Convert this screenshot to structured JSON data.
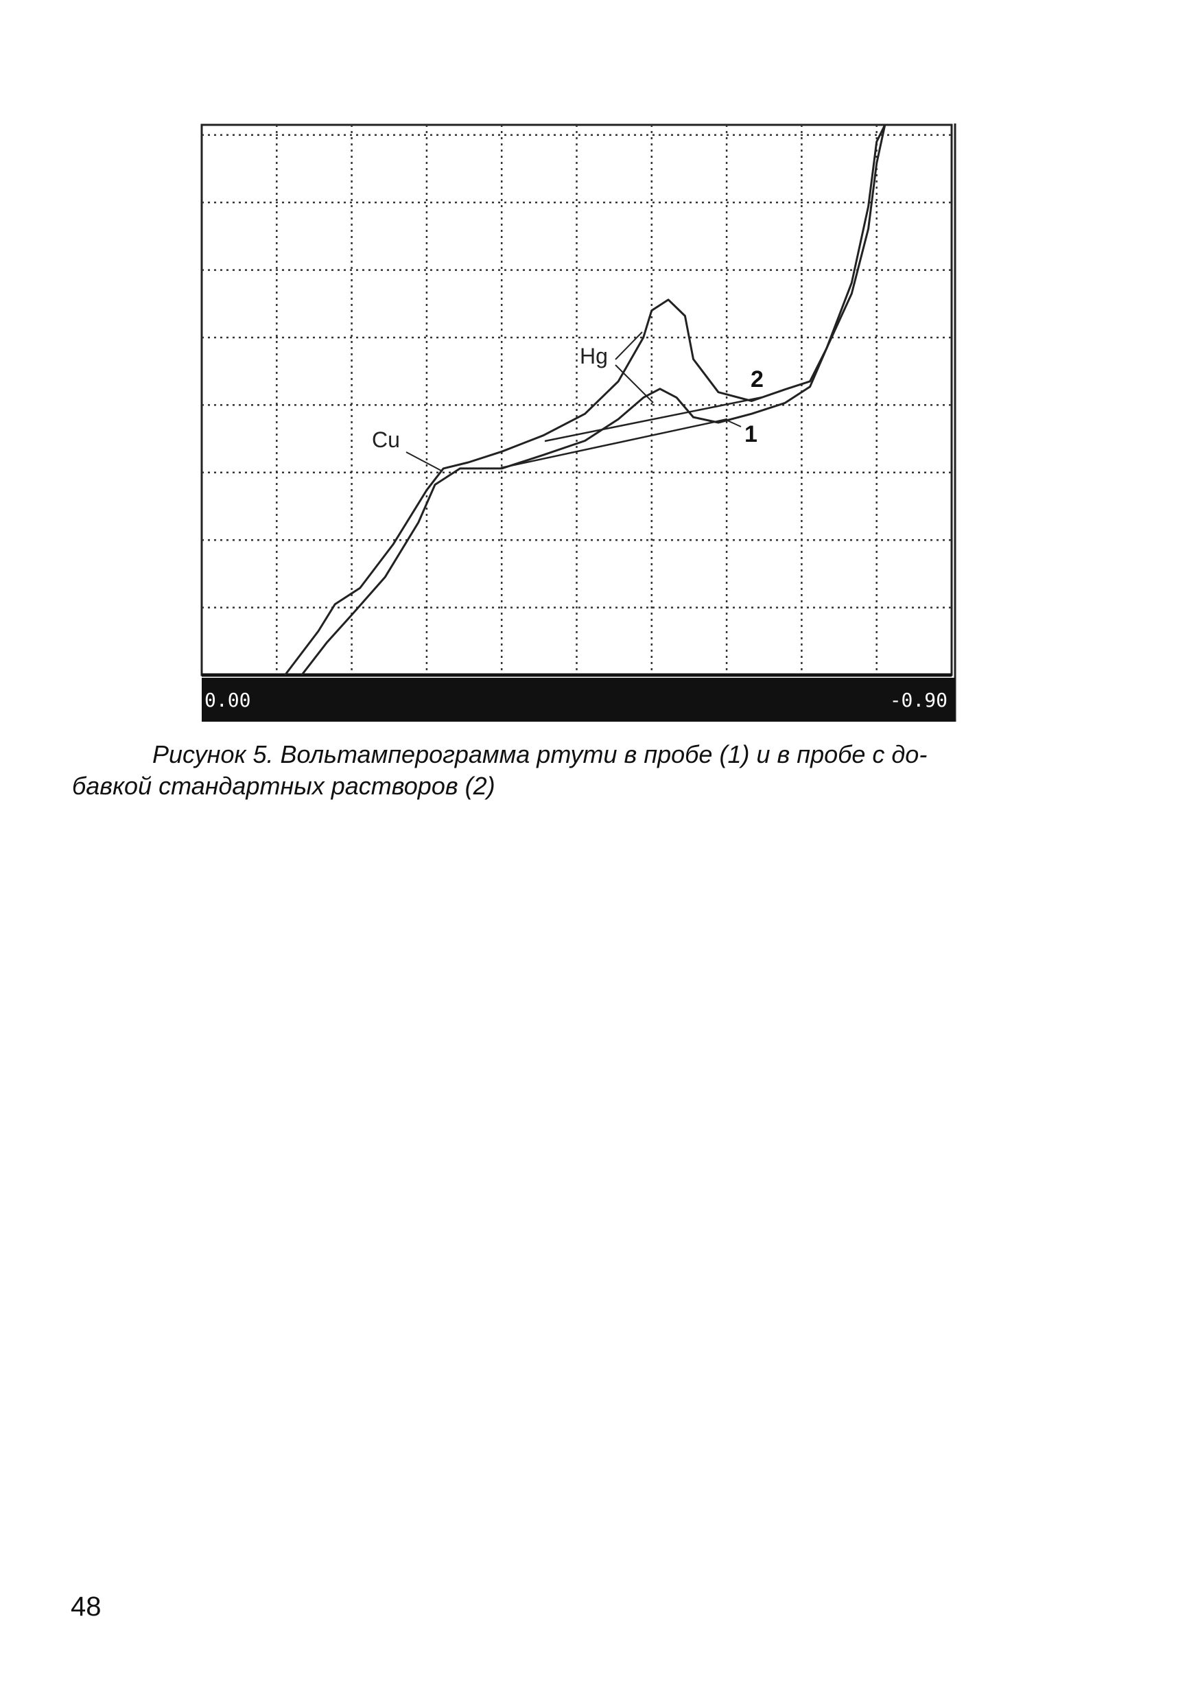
{
  "chart_data": {
    "type": "line",
    "xlim": [
      0,
      -0.9
    ],
    "ylim": [
      0,
      8.15
    ],
    "xticks": [
      {
        "value": 0,
        "label": "0.00"
      },
      {
        "value": -0.9,
        "label": "-0.90"
      }
    ],
    "xgrid": [
      -0.09,
      -0.18,
      -0.27,
      -0.36,
      -0.45,
      -0.54,
      -0.63,
      -0.72,
      -0.81
    ],
    "ygrid": [
      1,
      2,
      3,
      4,
      5,
      6,
      7,
      8
    ],
    "grid": true,
    "series": [
      {
        "name": "2",
        "color": "#222222",
        "x": [
          -0.1,
          -0.14,
          -0.16,
          -0.19,
          -0.23,
          -0.27,
          -0.29,
          -0.32,
          -0.36,
          -0.41,
          -0.46,
          -0.5,
          -0.53,
          -0.54,
          -0.56,
          -0.58,
          -0.59,
          -0.62,
          -0.66,
          -0.7,
          -0.73,
          -0.75,
          -0.78,
          -0.8,
          -0.81,
          -0.82
        ],
        "values": [
          0,
          0.65,
          1.05,
          1.29,
          1.94,
          2.74,
          3.06,
          3.15,
          3.31,
          3.55,
          3.87,
          4.35,
          5.0,
          5.4,
          5.56,
          5.32,
          4.68,
          4.19,
          4.06,
          4.23,
          4.35,
          4.84,
          5.81,
          6.94,
          7.9,
          8.15
        ]
      },
      {
        "name": "1",
        "color": "#222222",
        "x": [
          -0.12,
          -0.15,
          -0.18,
          -0.22,
          -0.26,
          -0.28,
          -0.31,
          -0.36,
          -0.41,
          -0.46,
          -0.5,
          -0.53,
          -0.55,
          -0.57,
          -0.59,
          -0.62,
          -0.66,
          -0.7,
          -0.73,
          -0.75,
          -0.78,
          -0.8,
          -0.81,
          -0.82
        ],
        "values": [
          0,
          0.48,
          0.89,
          1.45,
          2.26,
          2.82,
          3.06,
          3.06,
          3.26,
          3.47,
          3.79,
          4.11,
          4.24,
          4.11,
          3.82,
          3.74,
          3.87,
          4.03,
          4.27,
          4.84,
          5.65,
          6.61,
          7.58,
          8.15
        ]
      }
    ],
    "annotations": [
      "Cu",
      "Hg"
    ]
  },
  "caption": [
    "Рисунок 5. Вольтамперограмма ртути в пробе (1) и в пробе с до-",
    "бавкой стандартных растворов (2)"
  ],
  "page_number": "48"
}
